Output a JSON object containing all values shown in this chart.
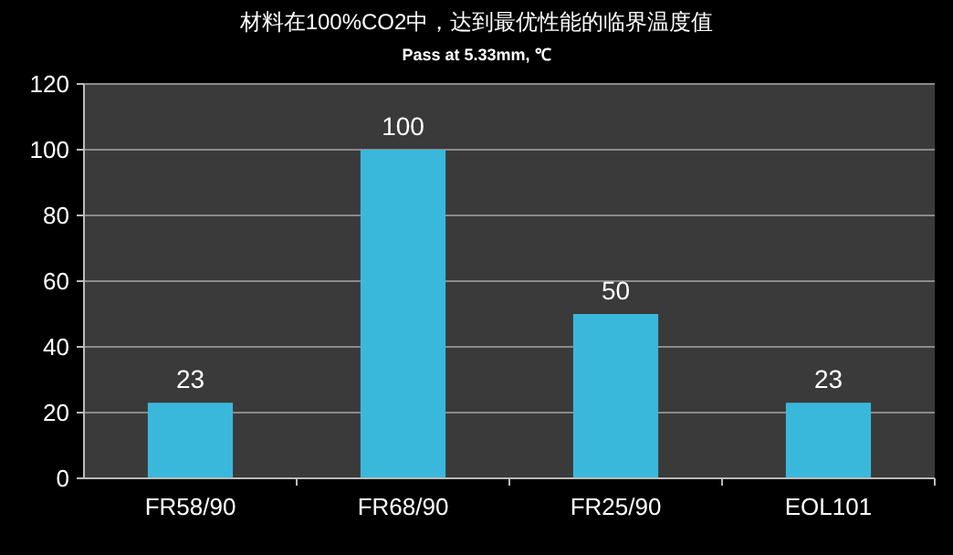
{
  "chart_data": {
    "type": "bar",
    "title": "材料在100%CO2中，达到最优性能的临界温度值",
    "subtitle": "Pass at 5.33mm, ℃",
    "categories": [
      "FR58/90",
      "FR68/90",
      "FR25/90",
      "EOL101"
    ],
    "values": [
      23,
      100,
      50,
      23
    ],
    "color": "#3ab8dc",
    "ylim": [
      0,
      120
    ],
    "yticks": [
      0,
      20,
      40,
      60,
      80,
      100,
      120
    ],
    "grid": "y",
    "data_labels": true
  }
}
